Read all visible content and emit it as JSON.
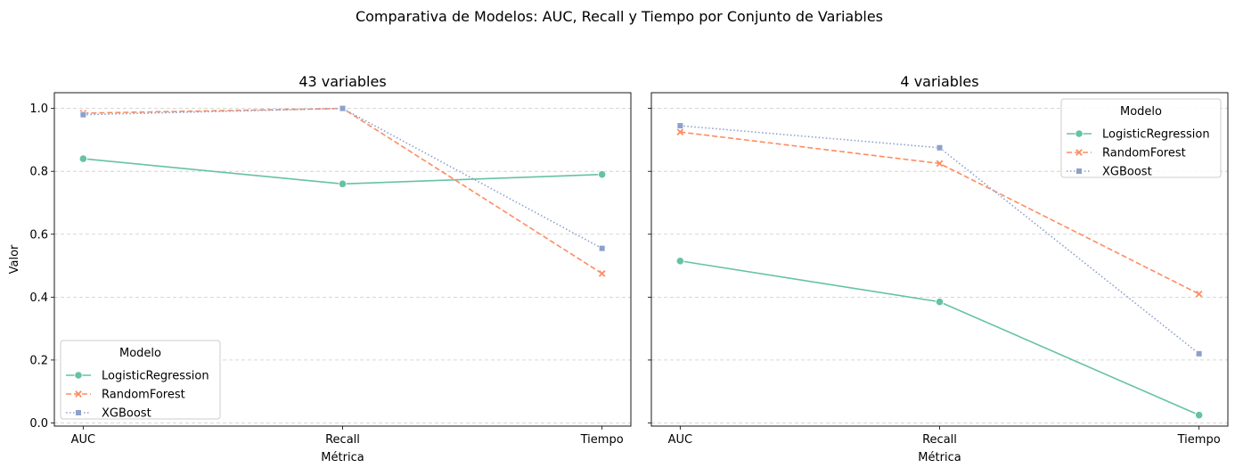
{
  "suptitle": "Comparativa de Modelos: AUC, Recall y Tiempo por Conjunto de Variables",
  "colors": {
    "LogisticRegression": "#66c2a5",
    "RandomForest": "#fc8d62",
    "XGBoost": "#8da0cb",
    "grid": "#cccccc"
  },
  "chart_data": [
    {
      "type": "line",
      "title": "43 variables",
      "xlabel": "Métrica",
      "ylabel": "Valor",
      "categories": [
        "AUC",
        "Recall",
        "Tiempo"
      ],
      "ylim": [
        -0.01,
        1.05
      ],
      "yticks": [
        "0.0",
        "0.2",
        "0.4",
        "0.6",
        "0.8",
        "1.0"
      ],
      "grid": "horizontal-dashed",
      "legend": {
        "title": "Modelo",
        "placement": "lower-left"
      },
      "series": [
        {
          "name": "LogisticRegression",
          "marker": "circle",
          "dash": "solid",
          "values": [
            0.84,
            0.76,
            0.79
          ]
        },
        {
          "name": "RandomForest",
          "marker": "x",
          "dash": "dashed",
          "values": [
            0.985,
            1.0,
            0.475
          ]
        },
        {
          "name": "XGBoost",
          "marker": "square",
          "dash": "dotted",
          "values": [
            0.98,
            1.0,
            0.555
          ]
        }
      ]
    },
    {
      "type": "line",
      "title": "4 variables",
      "xlabel": "Métrica",
      "ylabel": "",
      "categories": [
        "AUC",
        "Recall",
        "Tiempo"
      ],
      "ylim": [
        -0.01,
        1.05
      ],
      "yticks": [
        "0.0",
        "0.2",
        "0.4",
        "0.6",
        "0.8",
        "1.0"
      ],
      "grid": "horizontal-dashed",
      "legend": {
        "title": "Modelo",
        "placement": "upper-right"
      },
      "series": [
        {
          "name": "LogisticRegression",
          "marker": "circle",
          "dash": "solid",
          "values": [
            0.515,
            0.385,
            0.025
          ]
        },
        {
          "name": "RandomForest",
          "marker": "x",
          "dash": "dashed",
          "values": [
            0.925,
            0.825,
            0.41
          ]
        },
        {
          "name": "XGBoost",
          "marker": "square",
          "dash": "dotted",
          "values": [
            0.945,
            0.875,
            0.22
          ]
        }
      ]
    }
  ]
}
